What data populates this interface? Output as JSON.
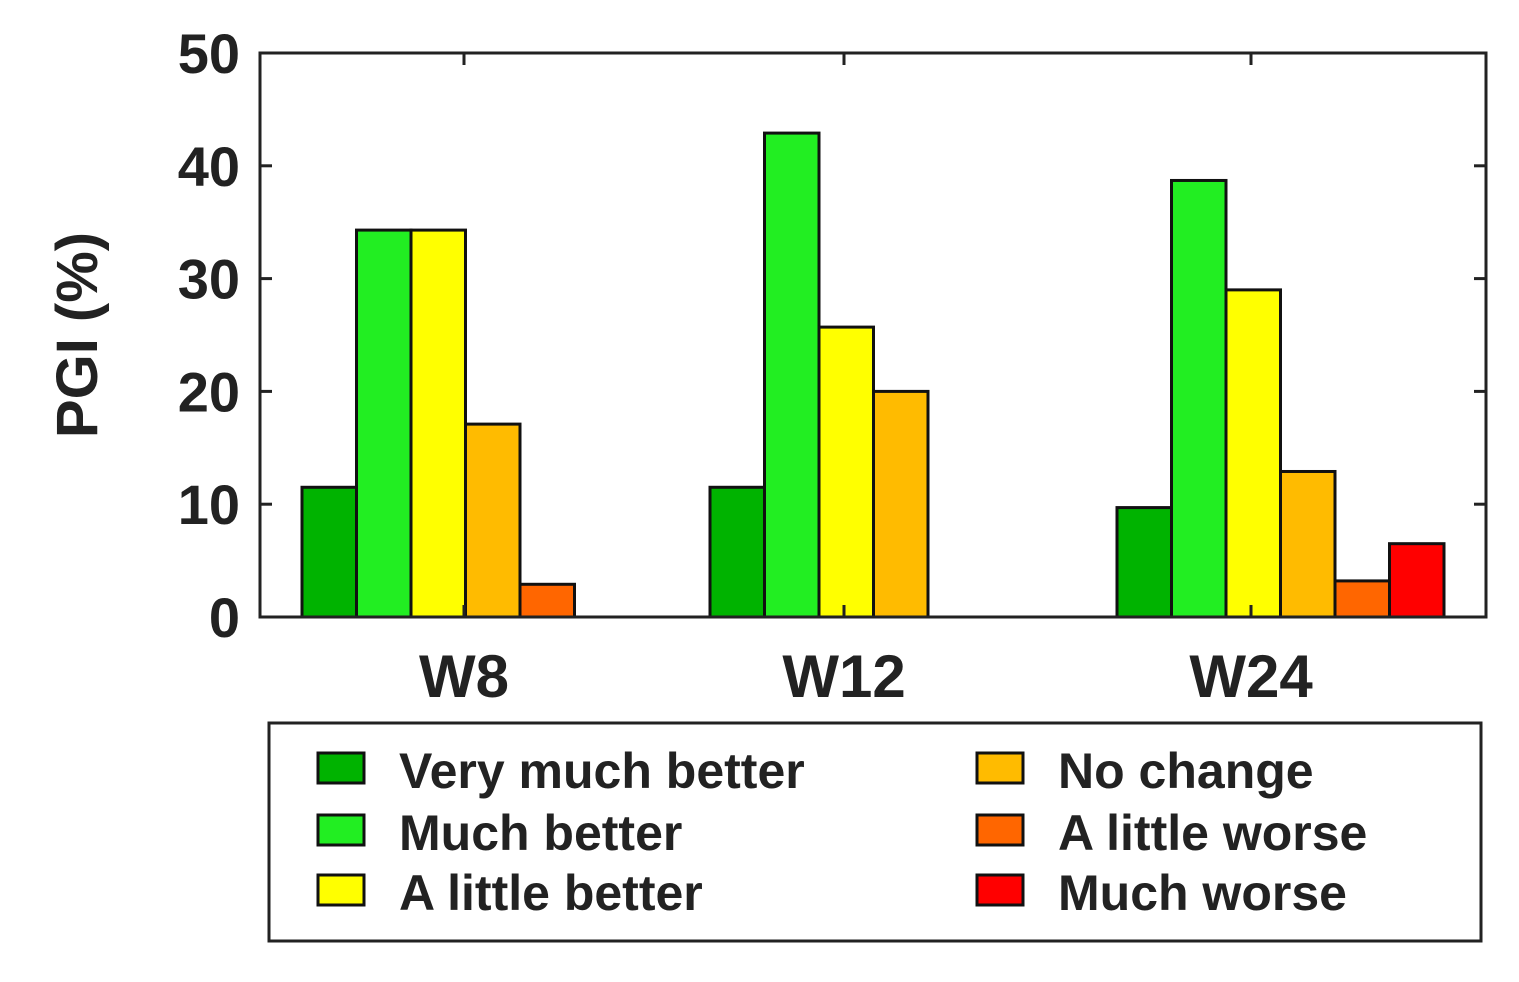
{
  "chart_data": {
    "type": "bar",
    "title": "",
    "xlabel": "",
    "ylabel": "PGI (%)",
    "ylim": [
      0,
      50
    ],
    "yticks": [
      0,
      10,
      20,
      30,
      40,
      50
    ],
    "categories": [
      "W8",
      "W12",
      "W24"
    ],
    "legend_position": "bottom",
    "series": [
      {
        "name": "Very much better",
        "color": "#00b300",
        "values": [
          11.5,
          11.5,
          9.7
        ]
      },
      {
        "name": "Much better",
        "color": "#22ee22",
        "values": [
          34.3,
          42.9,
          38.7
        ]
      },
      {
        "name": "A little better",
        "color": "#ffff00",
        "values": [
          34.3,
          25.7,
          29.0
        ]
      },
      {
        "name": "No change",
        "color": "#ffbb00",
        "values": [
          17.1,
          20.0,
          12.9
        ]
      },
      {
        "name": "A little worse",
        "color": "#ff6600",
        "values": [
          2.9,
          0,
          3.2
        ]
      },
      {
        "name": "Much worse",
        "color": "#ff0000",
        "values": [
          0,
          0,
          6.5
        ]
      }
    ]
  }
}
